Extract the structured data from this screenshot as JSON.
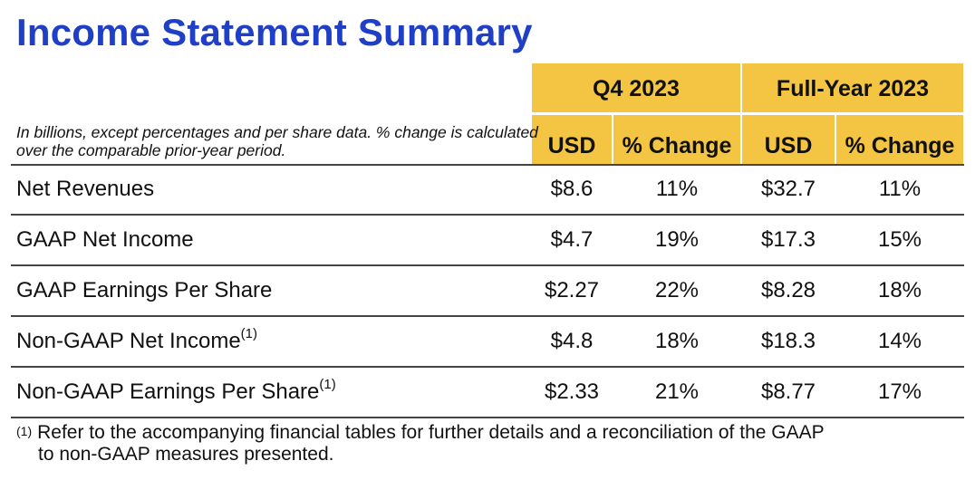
{
  "title": "Income Statement Summary",
  "note": "In billions, except percentages and per share data. % change is calculated over the comparable prior-year period.",
  "periods": [
    {
      "label": "Q4 2023",
      "cols": [
        "USD",
        "% Change"
      ]
    },
    {
      "label": "Full-Year 2023",
      "cols": [
        "USD",
        "% Change"
      ]
    }
  ],
  "rows": [
    {
      "label": "Net Revenues",
      "sup": "",
      "q4_usd": "$8.6",
      "q4_pct": "11%",
      "fy_usd": "$32.7",
      "fy_pct": "11%"
    },
    {
      "label": "GAAP Net Income",
      "sup": "",
      "q4_usd": "$4.7",
      "q4_pct": "19%",
      "fy_usd": "$17.3",
      "fy_pct": "15%"
    },
    {
      "label": "GAAP Earnings Per Share",
      "sup": "",
      "q4_usd": "$2.27",
      "q4_pct": "22%",
      "fy_usd": "$8.28",
      "fy_pct": "18%"
    },
    {
      "label": "Non-GAAP Net Income",
      "sup": "(1)",
      "q4_usd": "$4.8",
      "q4_pct": "18%",
      "fy_usd": "$18.3",
      "fy_pct": "14%"
    },
    {
      "label": "Non-GAAP Earnings Per Share",
      "sup": "(1)",
      "q4_usd": "$2.33",
      "q4_pct": "21%",
      "fy_usd": "$8.77",
      "fy_pct": "17%"
    }
  ],
  "footnote": {
    "mark": "(1)",
    "line1": "Refer to the accompanying financial tables for further details and a reconciliation of the GAAP",
    "line2": "to non-GAAP measures presented."
  },
  "colors": {
    "title": "#1f3fc6",
    "header_fill": "#f4c542"
  }
}
